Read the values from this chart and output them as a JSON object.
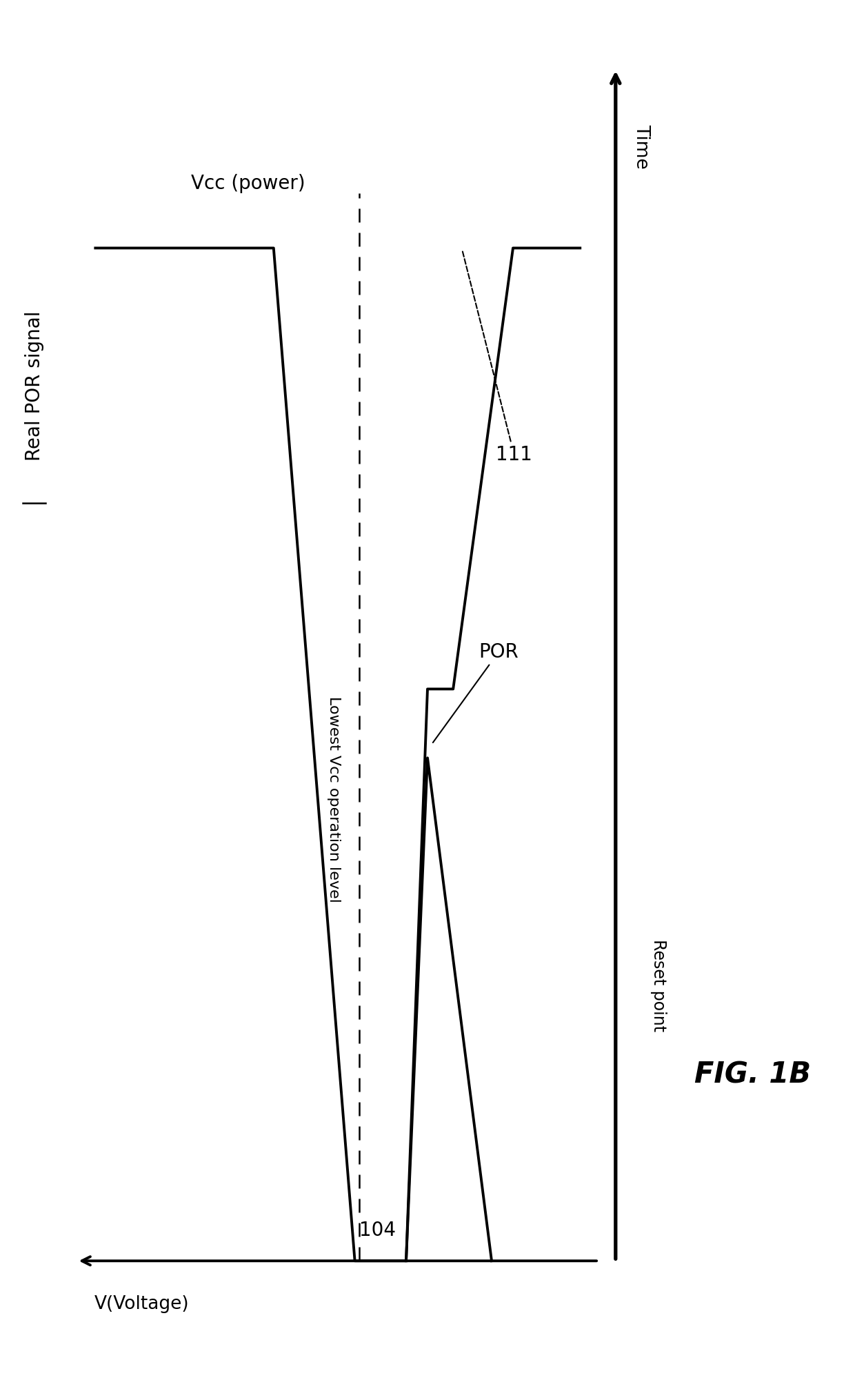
{
  "fig_label": "FIG. 1B",
  "title_label": "Real POR signal",
  "y_axis_label": "V(Voltage)",
  "x_axis_label": "Time",
  "reset_point_label": "Reset point",
  "lowest_vcc_label": "Lowest Vcc operation level",
  "vcc_label": "Vcc (power)",
  "por_label": "POR",
  "label_104": "104",
  "label_111": "111",
  "background_color": "#ffffff",
  "line_color": "#000000",
  "font_size_main": 20,
  "font_size_small": 17,
  "font_size_fig": 30,
  "font_size_axis": 19
}
